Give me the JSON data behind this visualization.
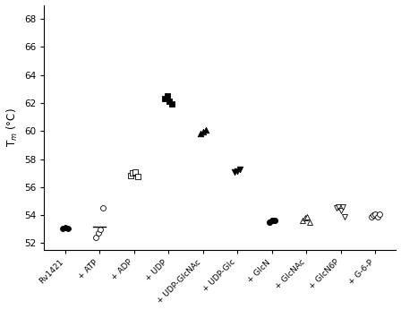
{
  "categories": [
    "Rv1421",
    "+ ATP",
    "+ ADP",
    "+ UDP",
    "+ UDP-GlcNAc",
    "+ UDP-Glc",
    "+ GlcN",
    "+ GlcNAc",
    "+ GlcN6P",
    "+ G-6-P"
  ],
  "ylabel": "T_m (°C)",
  "ylim": [
    51.5,
    69
  ],
  "yticks": [
    52,
    54,
    56,
    58,
    60,
    62,
    64,
    66,
    68
  ],
  "data": {
    "Rv1421": {
      "values": [
        53.05,
        53.1,
        53.05
      ],
      "marker": "o",
      "filled": true,
      "size": 18,
      "show_mean": false
    },
    "+ ATP": {
      "values": [
        52.4,
        52.75,
        53.0,
        54.5
      ],
      "marker": "o",
      "filled": false,
      "size": 18,
      "show_mean": true
    },
    "+ ADP": {
      "values": [
        56.85,
        57.0,
        57.05,
        56.75
      ],
      "marker": "s",
      "filled": false,
      "size": 18,
      "show_mean": false
    },
    "+ UDP": {
      "values": [
        62.35,
        62.5,
        62.1,
        61.95
      ],
      "marker": "s",
      "filled": true,
      "size": 22,
      "show_mean": false
    },
    "+ UDP-GlcNAc": {
      "values": [
        59.8,
        59.95,
        60.05
      ],
      "marker": "^",
      "filled": true,
      "size": 22,
      "show_mean": false
    },
    "+ UDP-Glc": {
      "values": [
        57.05,
        57.15,
        57.25
      ],
      "marker": "v",
      "filled": true,
      "size": 22,
      "show_mean": false
    },
    "+ GlcN": {
      "values": [
        53.5,
        53.65,
        53.6
      ],
      "marker": "o",
      "filled": true,
      "size": 20,
      "show_mean": false
    },
    "+ GlcNAc": {
      "values": [
        53.6,
        53.8,
        53.85,
        53.5
      ],
      "marker": "^",
      "filled": false,
      "size": 18,
      "show_mean": false
    },
    "+ GlcN6P": {
      "values": [
        54.5,
        54.55,
        54.3,
        54.6,
        53.85
      ],
      "marker": "v",
      "filled": false,
      "size": 18,
      "show_mean": false
    },
    "+ G-6-P": {
      "values": [
        53.85,
        54.0,
        54.1,
        53.9,
        54.05
      ],
      "marker": "o",
      "filled": false,
      "size": 18,
      "show_mean": false
    }
  },
  "mean_line_color": "#000000",
  "background_color": "#ffffff"
}
